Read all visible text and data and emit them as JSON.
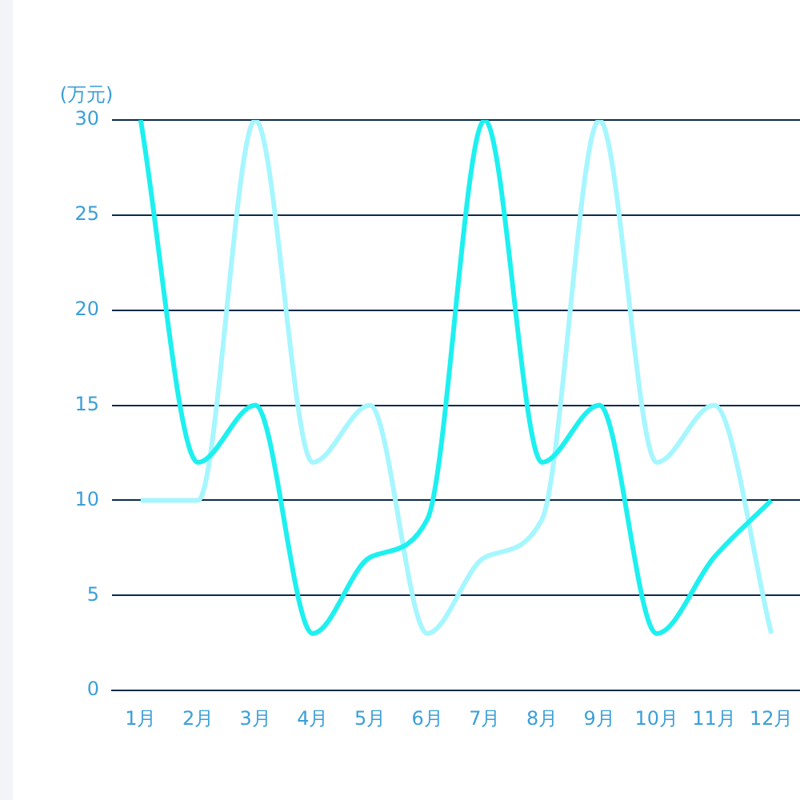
{
  "chart_data": {
    "type": "line",
    "ylabel": "(万元)",
    "categories": [
      "1月",
      "2月",
      "3月",
      "4月",
      "5月",
      "6月",
      "7月",
      "8月",
      "9月",
      "10月",
      "11月",
      "12月"
    ],
    "series": [
      {
        "color": "#1ef0f0",
        "values": [
          30,
          12,
          15,
          3,
          7,
          9,
          30,
          12,
          15,
          3,
          7,
          10
        ]
      },
      {
        "color": "#a6f6ff",
        "values": [
          10,
          10,
          30,
          12,
          15,
          3,
          7,
          9,
          30,
          12,
          15,
          3
        ]
      }
    ],
    "ylim": [
      0,
      30
    ],
    "yticks": [
      0,
      5,
      10,
      15,
      20,
      25,
      30
    ],
    "grid": "y",
    "legend": false,
    "marker": "none",
    "line_style": "solid"
  }
}
